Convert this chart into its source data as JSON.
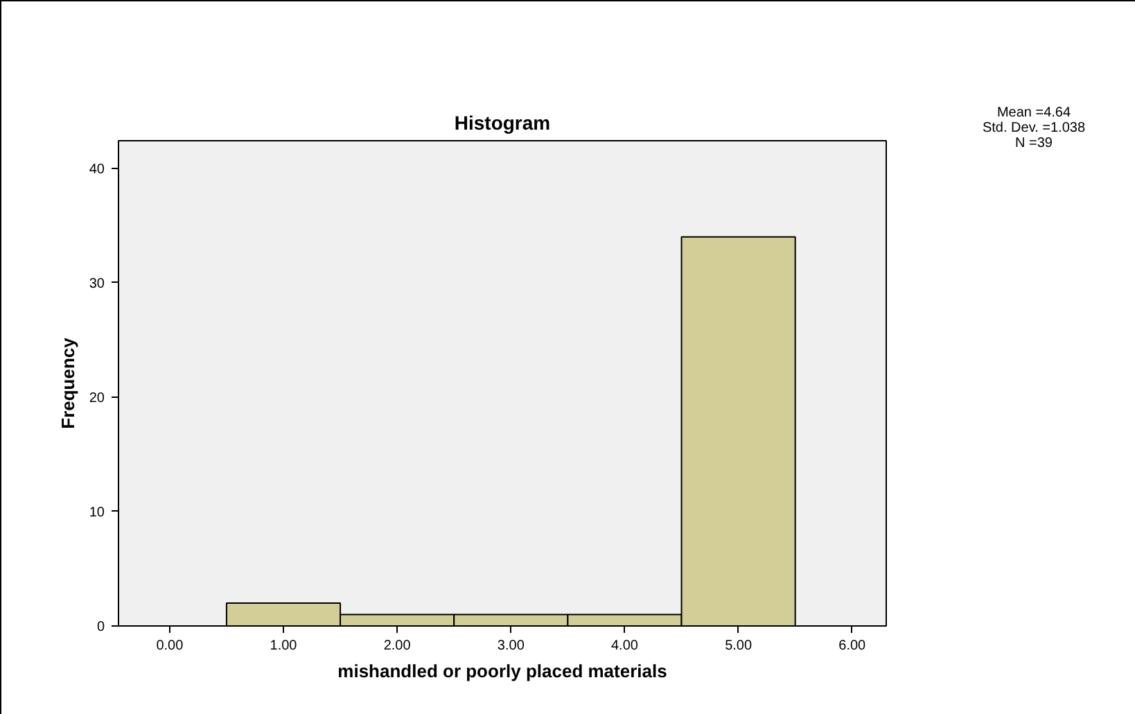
{
  "chart_data": {
    "type": "histogram",
    "title": "Histogram",
    "xlabel": "mishandled or poorly placed materials",
    "ylabel": "Frequency",
    "bins": [
      0.5,
      1.5,
      2.5,
      3.5,
      4.5,
      5.5
    ],
    "values": [
      2,
      1,
      1,
      1,
      34
    ],
    "color": "#d3ce97",
    "xlim": [
      -0.45,
      6.3
    ],
    "ylim": [
      0,
      42.4
    ],
    "xticks": [
      {
        "value": 0,
        "label": "0.00"
      },
      {
        "value": 1,
        "label": "1.00"
      },
      {
        "value": 2,
        "label": "2.00"
      },
      {
        "value": 3,
        "label": "3.00"
      },
      {
        "value": 4,
        "label": "4.00"
      },
      {
        "value": 5,
        "label": "5.00"
      },
      {
        "value": 6,
        "label": "6.00"
      }
    ],
    "yticks": [
      0,
      10,
      20,
      30,
      40
    ],
    "grid": false,
    "annotations": [
      "Mean =4.64",
      "Std. Dev. =1.038",
      "N =39"
    ]
  }
}
